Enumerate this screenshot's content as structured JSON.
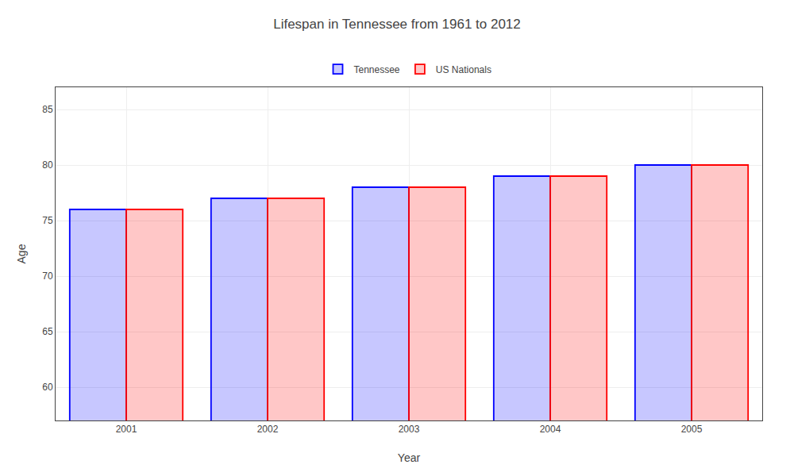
{
  "chart_data": {
    "type": "bar",
    "title": "Lifespan in Tennessee from 1961 to 2012",
    "x_label": "Year",
    "y_label": "Age",
    "categories": [
      "2001",
      "2002",
      "2003",
      "2004",
      "2005"
    ],
    "series": [
      {
        "name": "Tennessee",
        "color": "#0000ff",
        "values": [
          76,
          77,
          78,
          79,
          80
        ]
      },
      {
        "name": "US Nationals",
        "color": "#ff0000",
        "values": [
          76,
          77,
          78,
          79,
          80
        ]
      }
    ],
    "ylim": [
      57,
      87
    ],
    "yticks": [
      60,
      65,
      70,
      75,
      80,
      85
    ],
    "grid": true,
    "legend": "top"
  }
}
